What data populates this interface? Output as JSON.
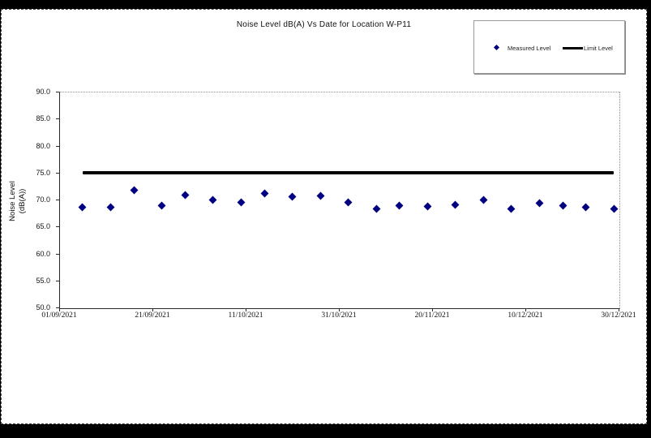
{
  "page": {
    "background_color": "#000000",
    "canvas_color": "#ffffff",
    "accent_color": "#000080"
  },
  "chart": {
    "title": "Noise Level dB(A) Vs Date for Location W-P11",
    "legend": {
      "measured_label": "Measured Level",
      "limit_label": "Limit Level"
    },
    "y_axis": {
      "title_line1": "Noise Level",
      "title_line2": "(dB(A))"
    }
  },
  "chart_data": {
    "type": "scatter",
    "title": "Noise Level dB(A) Vs Date for Location W-P11",
    "xlabel": "",
    "ylabel": "Noise Level (dB(A))",
    "ylim": [
      50,
      90
    ],
    "y_tick_step": 5,
    "grid": false,
    "legend_position": "top-right",
    "marker_color": "#000080",
    "limit_color": "#000000",
    "x_range_days": [
      0,
      120
    ],
    "y_ticks": [
      {
        "label": "90.0",
        "value": 90
      },
      {
        "label": "85.0",
        "value": 85
      },
      {
        "label": "80.0",
        "value": 80
      },
      {
        "label": "75.0",
        "value": 75
      },
      {
        "label": "70.0",
        "value": 70
      },
      {
        "label": "65.0",
        "value": 65
      },
      {
        "label": "60.0",
        "value": 60
      },
      {
        "label": "55.0",
        "value": 55
      },
      {
        "label": "50.0",
        "value": 50
      }
    ],
    "x_ticks": [
      {
        "label": "01/09/2021",
        "day": 0
      },
      {
        "label": "21/09/2021",
        "day": 20
      },
      {
        "label": "11/10/2021",
        "day": 40
      },
      {
        "label": "31/10/2021",
        "day": 60
      },
      {
        "label": "20/11/2021",
        "day": 80
      },
      {
        "label": "10/12/2021",
        "day": 100
      },
      {
        "label": "30/12/2021",
        "day": 120
      }
    ],
    "series": [
      {
        "name": "Measured Level",
        "type": "scatter",
        "color": "#000080",
        "points": [
          {
            "date": "06/09/2021",
            "day": 5,
            "value": 68.6
          },
          {
            "date": "12/09/2021",
            "day": 11,
            "value": 68.5
          },
          {
            "date": "17/09/2021",
            "day": 16,
            "value": 71.8
          },
          {
            "date": "23/09/2021",
            "day": 22,
            "value": 68.8
          },
          {
            "date": "28/09/2021",
            "day": 27,
            "value": 70.8
          },
          {
            "date": "04/10/2021",
            "day": 33,
            "value": 69.9
          },
          {
            "date": "10/10/2021",
            "day": 39,
            "value": 69.5
          },
          {
            "date": "15/10/2021",
            "day": 44,
            "value": 71.2
          },
          {
            "date": "21/10/2021",
            "day": 50,
            "value": 70.5
          },
          {
            "date": "27/10/2021",
            "day": 56,
            "value": 70.7
          },
          {
            "date": "02/11/2021",
            "day": 62,
            "value": 69.4
          },
          {
            "date": "08/11/2021",
            "day": 68,
            "value": 68.2
          },
          {
            "date": "13/11/2021",
            "day": 73,
            "value": 68.8
          },
          {
            "date": "19/11/2021",
            "day": 79,
            "value": 68.7
          },
          {
            "date": "25/11/2021",
            "day": 85,
            "value": 69.0
          },
          {
            "date": "01/12/2021",
            "day": 91,
            "value": 69.9
          },
          {
            "date": "07/12/2021",
            "day": 97,
            "value": 68.2
          },
          {
            "date": "13/12/2021",
            "day": 103,
            "value": 69.3
          },
          {
            "date": "18/12/2021",
            "day": 108,
            "value": 68.8
          },
          {
            "date": "23/12/2021",
            "day": 113,
            "value": 68.6
          },
          {
            "date": "29/12/2021",
            "day": 119,
            "value": 68.2
          }
        ]
      },
      {
        "name": "Limit Level",
        "type": "line",
        "color": "#000000",
        "value": 75.0,
        "start_day": 5,
        "end_day": 119
      }
    ]
  }
}
